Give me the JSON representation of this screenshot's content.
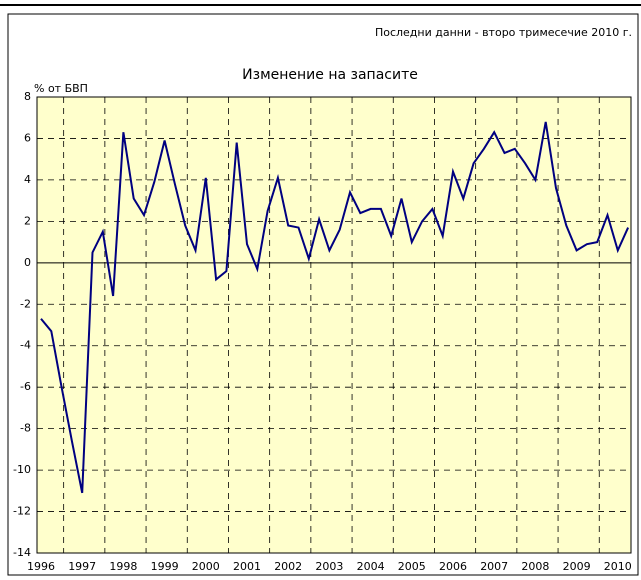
{
  "chart_data": {
    "type": "line",
    "subtitle": "Последни данни - второ тримесечие 2010 г.",
    "title": "Изменение на запасите",
    "y_label": "% от БВП",
    "categories": [
      "1996",
      null,
      null,
      null,
      "1997",
      null,
      null,
      null,
      "1998",
      null,
      null,
      null,
      "1999",
      null,
      null,
      null,
      "2000",
      null,
      null,
      null,
      "2001",
      null,
      null,
      null,
      "2002",
      null,
      null,
      null,
      "2003",
      null,
      null,
      null,
      "2004",
      null,
      null,
      null,
      "2005",
      null,
      null,
      null,
      "2006",
      null,
      null,
      null,
      "2007",
      null,
      null,
      null,
      "2008",
      null,
      null,
      null,
      "2009",
      null,
      null,
      null,
      "2010",
      null
    ],
    "series": [
      {
        "name": "Изменение на запасите",
        "color": "#000080",
        "values": [
          -2.7,
          -3.3,
          -6,
          -8.6,
          -11.1,
          0.5,
          1.5,
          -1.6,
          6.3,
          3.1,
          2.3,
          3.9,
          5.9,
          3.8,
          1.8,
          0.6,
          4.1,
          -0.8,
          -0.4,
          5.8,
          0.9,
          -0.3,
          2.5,
          4.1,
          1.8,
          1.7,
          0.2,
          2.1,
          0.6,
          1.6,
          3.4,
          2.4,
          2.6,
          2.6,
          1.3,
          3.1,
          1.0,
          2.0,
          2.6,
          1.3,
          4.4,
          3.1,
          4.8,
          5.5,
          6.3,
          5.3,
          5.5,
          4.8,
          4.0,
          6.8,
          3.6,
          1.8,
          0.6,
          0.9,
          1.0,
          2.3,
          0.6,
          1.7
        ]
      }
    ],
    "ylim": [
      -14,
      8
    ],
    "yticks": [
      -14,
      -12,
      -10,
      -8,
      -6,
      -4,
      -2,
      0,
      2,
      4,
      6,
      8
    ],
    "grid": true
  }
}
